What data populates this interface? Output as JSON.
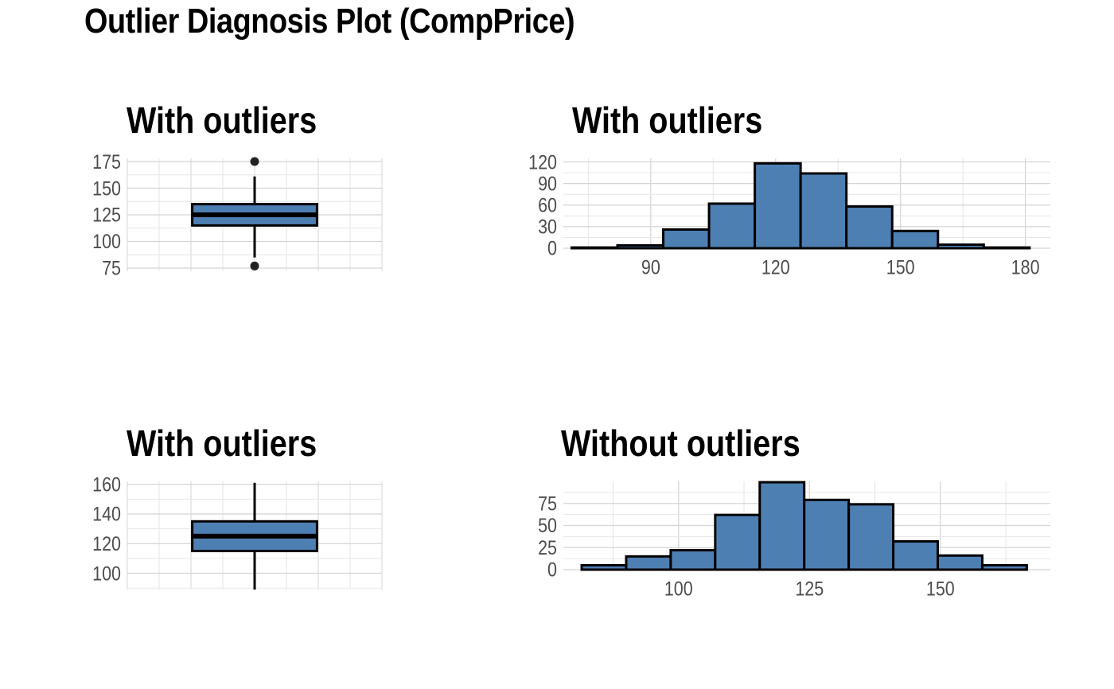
{
  "title": "Outlier Diagnosis Plot (CompPrice)",
  "chart_data": [
    {
      "type": "box",
      "title": "With outliers",
      "ylim": [
        72,
        178
      ],
      "y_ticks": [
        75,
        100,
        125,
        150,
        175
      ],
      "y_tick_labels": [
        "75",
        "100",
        "125",
        "150",
        "175"
      ],
      "box": {
        "lower_whisker": 85,
        "q1": 115,
        "median": 125,
        "q3": 135,
        "upper_whisker": 161
      },
      "outliers": [
        77,
        175
      ],
      "fill_color": "#4e7fb3",
      "grid": true
    },
    {
      "type": "histogram",
      "title": "With outliers",
      "xlim": [
        69,
        186
      ],
      "ylim": [
        0,
        125
      ],
      "x_ticks": [
        90,
        120,
        150,
        180
      ],
      "x_tick_labels": [
        "90",
        "120",
        "150",
        "180"
      ],
      "y_ticks": [
        0,
        30,
        60,
        90,
        120
      ],
      "y_tick_labels": [
        "0",
        "30",
        "60",
        "90",
        "120"
      ],
      "bins": [
        {
          "x0": 71,
          "x1": 82,
          "count": 1
        },
        {
          "x0": 82,
          "x1": 93,
          "count": 4
        },
        {
          "x0": 93,
          "x1": 104,
          "count": 26
        },
        {
          "x0": 104,
          "x1": 115,
          "count": 62
        },
        {
          "x0": 115,
          "x1": 126,
          "count": 118
        },
        {
          "x0": 126,
          "x1": 137,
          "count": 104
        },
        {
          "x0": 137,
          "x1": 148,
          "count": 58
        },
        {
          "x0": 148,
          "x1": 159,
          "count": 24
        },
        {
          "x0": 159,
          "x1": 170,
          "count": 5
        },
        {
          "x0": 170,
          "x1": 181,
          "count": 1
        }
      ],
      "fill_color": "#4e7fb3",
      "grid": true
    },
    {
      "type": "box",
      "title": "With outliers",
      "ylim": [
        89,
        162
      ],
      "y_ticks": [
        100,
        120,
        140,
        160
      ],
      "y_tick_labels": [
        "100",
        "120",
        "140",
        "160"
      ],
      "box": {
        "lower_whisker": 85,
        "q1": 115,
        "median": 125,
        "q3": 135,
        "upper_whisker": 161
      },
      "outliers": [],
      "fill_color": "#4e7fb3",
      "grid": true
    },
    {
      "type": "histogram",
      "title": "Without outliers",
      "xlim": [
        78,
        171
      ],
      "ylim": [
        0,
        100
      ],
      "x_ticks": [
        100,
        125,
        150
      ],
      "x_tick_labels": [
        "100",
        "125",
        "150"
      ],
      "y_ticks": [
        0,
        25,
        50,
        75
      ],
      "y_tick_labels": [
        "0",
        "25",
        "50",
        "75"
      ],
      "bins": [
        {
          "x0": 81.5,
          "x1": 90,
          "count": 5
        },
        {
          "x0": 90,
          "x1": 98.5,
          "count": 15
        },
        {
          "x0": 98.5,
          "x1": 107,
          "count": 22
        },
        {
          "x0": 107,
          "x1": 115.5,
          "count": 62
        },
        {
          "x0": 115.5,
          "x1": 124,
          "count": 99
        },
        {
          "x0": 124,
          "x1": 132.5,
          "count": 79
        },
        {
          "x0": 132.5,
          "x1": 141,
          "count": 74
        },
        {
          "x0": 141,
          "x1": 149.5,
          "count": 32
        },
        {
          "x0": 149.5,
          "x1": 158,
          "count": 16
        },
        {
          "x0": 158,
          "x1": 166.5,
          "count": 5
        }
      ],
      "fill_color": "#4e7fb3",
      "grid": true
    }
  ]
}
